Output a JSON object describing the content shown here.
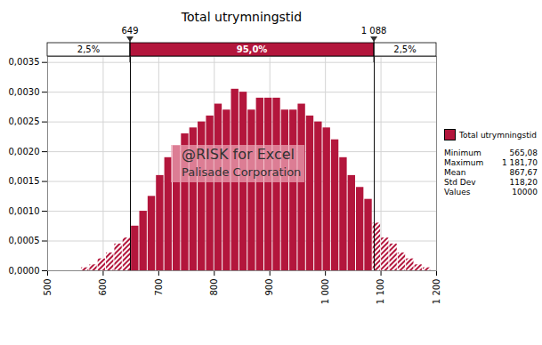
{
  "chart_data": {
    "type": "histogram",
    "title": "Total utrymningstid",
    "series_name": "Total utrymningstid",
    "color": "#b3163c",
    "bins": [
      560,
      575,
      590,
      605,
      620,
      635,
      650,
      665,
      680,
      695,
      710,
      725,
      740,
      755,
      770,
      785,
      800,
      815,
      830,
      845,
      860,
      875,
      890,
      905,
      920,
      935,
      950,
      965,
      980,
      995,
      1010,
      1025,
      1040,
      1055,
      1070,
      1085,
      1100,
      1115,
      1130,
      1145,
      1160,
      1175,
      1190
    ],
    "values": [
      5e-05,
      0.0001,
      0.0002,
      0.0003,
      0.00045,
      0.00055,
      0.00075,
      0.001,
      0.00125,
      0.0016,
      0.0019,
      0.0021,
      0.0023,
      0.0024,
      0.0025,
      0.0026,
      0.0028,
      0.0027,
      0.00305,
      0.003,
      0.0027,
      0.0029,
      0.0029,
      0.0029,
      0.0027,
      0.0027,
      0.0028,
      0.0026,
      0.0025,
      0.0024,
      0.0022,
      0.0019,
      0.0016,
      0.0014,
      0.0012,
      0.0008,
      0.00055,
      0.00045,
      0.0003,
      0.0002,
      0.0001,
      5e-05
    ],
    "xlim": [
      500,
      1200
    ],
    "xticks": [
      500,
      600,
      700,
      800,
      900,
      {
        "value": 1000,
        "label": "1 000"
      },
      {
        "value": 1100,
        "label": "1 100"
      },
      {
        "value": 1200,
        "label": "1 200"
      }
    ],
    "ylim": [
      0,
      0.0036
    ],
    "yticks": [
      {
        "value": 0,
        "label": "0,0000"
      },
      {
        "value": 0.0005,
        "label": "0,0005"
      },
      {
        "value": 0.001,
        "label": "0,0010"
      },
      {
        "value": 0.0015,
        "label": "0,0015"
      },
      {
        "value": 0.002,
        "label": "0,0020"
      },
      {
        "value": 0.0025,
        "label": "0,0025"
      },
      {
        "value": 0.003,
        "label": "0,0030"
      },
      {
        "value": 0.0035,
        "label": "0,0035"
      }
    ],
    "grid": true,
    "legend": "right",
    "markers": [
      {
        "value": 649,
        "label": "649"
      },
      {
        "value": 1088,
        "label": "1 088"
      }
    ],
    "region_labels": [
      "2,5%",
      "95,0%",
      "2,5%"
    ],
    "statistics": [
      {
        "name": "Minimum",
        "value": 565.08,
        "label": "565,08"
      },
      {
        "name": "Maximum",
        "value": 1181.7,
        "label": "1 181,70"
      },
      {
        "name": "Mean",
        "value": 867.67,
        "label": "867,67"
      },
      {
        "name": "Std Dev",
        "value": 118.2,
        "label": "118,20"
      },
      {
        "name": "Values",
        "value": 10000,
        "label": "10000"
      }
    ],
    "annotations": [
      "@RISK for Excel",
      "Palisade Corporation"
    ]
  }
}
